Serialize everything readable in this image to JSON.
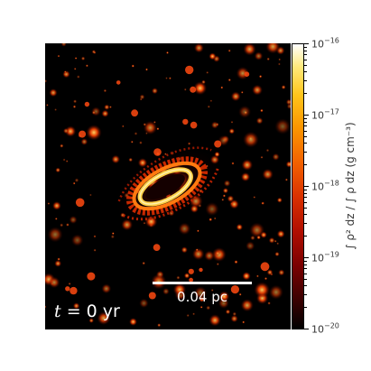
{
  "scale_bar": {
    "label": "0.04 pc"
  },
  "time": {
    "symbol": "t",
    "value": "= 0 yr"
  },
  "colorbar": {
    "label": "∫ ρ² dz / ∫ ρ dz (g cm⁻³)",
    "ticks": [
      {
        "base": "10",
        "exp": "−16"
      },
      {
        "base": "10",
        "exp": "−17"
      },
      {
        "base": "10",
        "exp": "−18"
      },
      {
        "base": "10",
        "exp": "−19"
      },
      {
        "base": "10",
        "exp": "−20"
      }
    ],
    "colormap": "hot",
    "colors": [
      "#000000",
      "#7a0000",
      "#d93000",
      "#fb9300",
      "#ffe97a",
      "#ffffff"
    ]
  }
}
